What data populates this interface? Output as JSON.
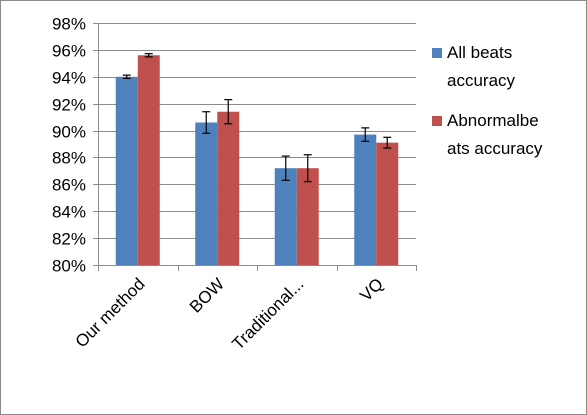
{
  "chart_data": {
    "type": "bar",
    "categories": [
      "Our method",
      "BOW",
      "Traditional...",
      "VQ"
    ],
    "series": [
      {
        "name": "All beats accuracy",
        "legend_lines": [
          "All beats",
          "accuracy"
        ],
        "color": "#4f81bd",
        "values": [
          94.0,
          90.6,
          87.2,
          89.7
        ],
        "errors": [
          0.12,
          0.8,
          0.9,
          0.5
        ]
      },
      {
        "name": "Abnormalbeats accuracy",
        "legend_lines": [
          "Abnormalbe",
          "ats accuracy"
        ],
        "color": "#c0504d",
        "values": [
          95.6,
          91.4,
          87.2,
          89.1
        ],
        "errors": [
          0.12,
          0.9,
          1.0,
          0.4
        ]
      }
    ],
    "ylim": [
      80,
      98
    ],
    "ytick_step": 2,
    "ytick_suffix": "%",
    "grid": true,
    "legend_position": "right",
    "xlabel": "",
    "ylabel": "",
    "title": ""
  }
}
